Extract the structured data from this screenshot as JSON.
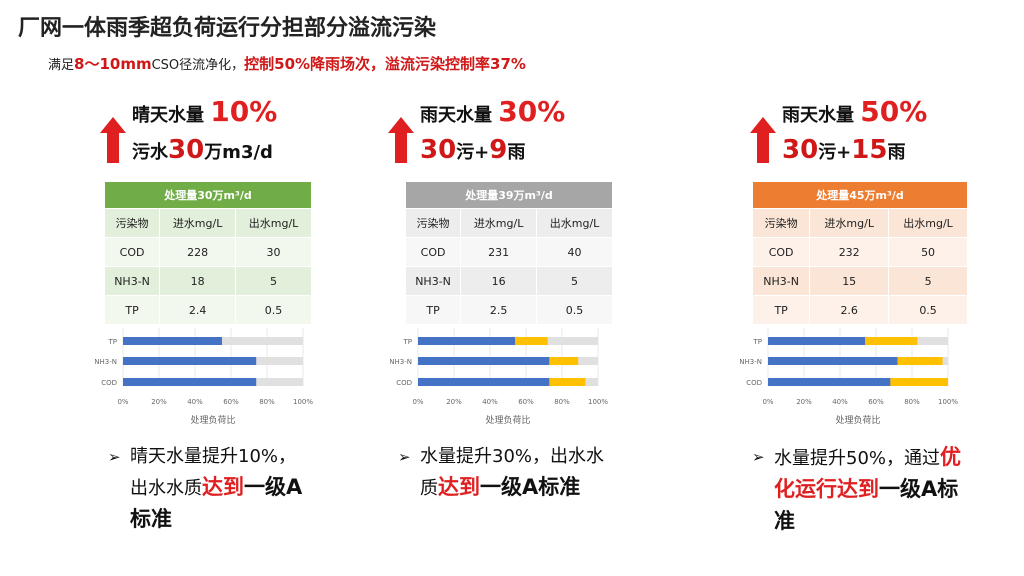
{
  "title": "厂网一体雨季超负荷运行分担部分溢流污染",
  "subtitle": {
    "prefix": "满足",
    "range": "8～10mm",
    "middle": "CSO径流净化，",
    "highlight": "控制50%降雨场次，溢流污染控制率37%"
  },
  "colors": {
    "green": "#70ad47",
    "gray": "#a6a6a6",
    "orange": "#ed7d31",
    "blue": "#4472c4",
    "yellow": "#ffc000",
    "red": "#e02020"
  },
  "table_headers": [
    "污染物",
    "进水mg/L",
    "出水mg/L"
  ],
  "axis_title": "处理负荷比",
  "x_ticks": [
    "0%",
    "20%",
    "40%",
    "60%",
    "80%",
    "100%"
  ],
  "scenarios": [
    {
      "headline": {
        "label": "晴天水量 ",
        "pct": "10%",
        "line2": [
          {
            "t": "污水",
            "b": false
          },
          {
            "t": "30",
            "b": true
          },
          {
            "t": "万m3/d",
            "b": false
          }
        ]
      },
      "table_title": "处理量30万m³/d",
      "rows": [
        [
          "COD",
          "228",
          "30"
        ],
        [
          "NH3-N",
          "18",
          "5"
        ],
        [
          "TP",
          "2.4",
          "0.5"
        ]
      ],
      "bullet": [
        {
          "t": "晴天水量提升10%，"
        },
        {
          "t": "出水水质"
        },
        {
          "t": "达到",
          "c": "red"
        },
        {
          "t": "一级A标准",
          "c": "bold"
        }
      ]
    },
    {
      "headline": {
        "label": "雨天水量 ",
        "pct": "30%",
        "line2": [
          {
            "t": "30",
            "b": true
          },
          {
            "t": "污+",
            "b": false
          },
          {
            "t": "9",
            "b": true
          },
          {
            "t": "雨",
            "b": false
          }
        ]
      },
      "table_title": "处理量39万m³/d",
      "rows": [
        [
          "COD",
          "231",
          "40"
        ],
        [
          "NH3-N",
          "16",
          "5"
        ],
        [
          "TP",
          "2.5",
          "0.5"
        ]
      ],
      "bullet": [
        {
          "t": "水量提升30%，出水"
        },
        {
          "t": "水质"
        },
        {
          "t": "达到",
          "c": "red"
        },
        {
          "t": "一级A",
          "c": "bold"
        },
        {
          "t": "标准",
          "c": "bold"
        }
      ]
    },
    {
      "headline": {
        "label": "雨天水量 ",
        "pct": "50%",
        "line2": [
          {
            "t": "30",
            "b": true
          },
          {
            "t": "污+",
            "b": false
          },
          {
            "t": "15",
            "b": true
          },
          {
            "t": "雨",
            "b": false
          }
        ]
      },
      "table_title": "处理量45万m³/d",
      "rows": [
        [
          "COD",
          "232",
          "50"
        ],
        [
          "NH3-N",
          "15",
          "5"
        ],
        [
          "TP",
          "2.6",
          "0.5"
        ]
      ],
      "bullet": [
        {
          "t": "水量提升50%，通过"
        },
        {
          "t": "优化运行达到",
          "c": "red"
        },
        {
          "t": "一级A标准",
          "c": "bold"
        }
      ]
    }
  ],
  "chart_data": [
    {
      "type": "bar",
      "orientation": "horizontal",
      "stacked": true,
      "categories": [
        "TP",
        "NH3-N",
        "COD"
      ],
      "series": [
        {
          "values": [
            0.55,
            0.74,
            0.74
          ]
        },
        {
          "values": [
            0,
            0,
            0
          ]
        }
      ],
      "xlim": [
        0,
        1
      ],
      "xlabel": "处理负荷比"
    },
    {
      "type": "bar",
      "orientation": "horizontal",
      "stacked": true,
      "categories": [
        "TP",
        "NH3-N",
        "COD"
      ],
      "series": [
        {
          "values": [
            0.54,
            0.73,
            0.73
          ]
        },
        {
          "values": [
            0.18,
            0.16,
            0.2
          ]
        }
      ],
      "xlim": [
        0,
        1
      ],
      "xlabel": "处理负荷比"
    },
    {
      "type": "bar",
      "orientation": "horizontal",
      "stacked": true,
      "categories": [
        "TP",
        "NH3-N",
        "COD"
      ],
      "series": [
        {
          "values": [
            0.54,
            0.72,
            0.68
          ]
        },
        {
          "values": [
            0.29,
            0.25,
            0.32
          ]
        }
      ],
      "xlim": [
        0,
        1
      ],
      "xlabel": "处理负荷比"
    }
  ]
}
